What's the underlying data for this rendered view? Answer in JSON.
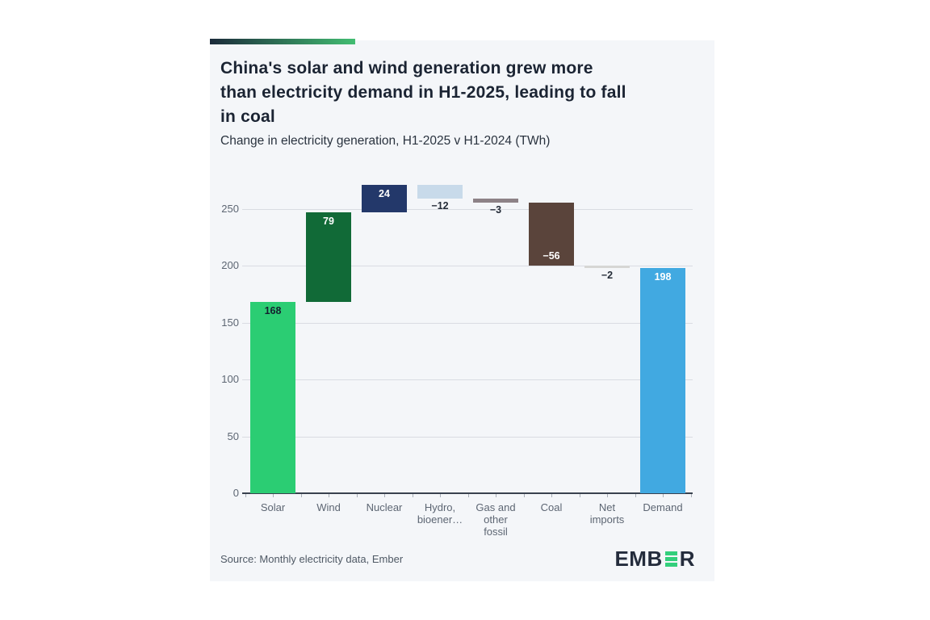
{
  "header": {
    "title_lines": [
      "China's solar and wind generation grew more",
      "than electricity demand in H1-2025, leading to fall",
      "in coal"
    ],
    "subtitle": "Change in electricity generation, H1-2025 v H1-2024 (TWh)"
  },
  "chart_data": {
    "type": "bar",
    "subtype": "waterfall",
    "title": "China's solar and wind generation grew more than electricity demand in H1-2025, leading to fall in coal",
    "subtitle": "Change in electricity generation, H1-2025 v H1-2024 (TWh)",
    "unit": "TWh",
    "ylim": [
      0,
      275
    ],
    "y_ticks": [
      0,
      50,
      100,
      150,
      200,
      250
    ],
    "grid": true,
    "legend": "none",
    "categories": [
      "Solar",
      "Wind",
      "Nuclear",
      "Hydro, bioener…",
      "Gas and other fossil",
      "Coal",
      "Net imports",
      "Demand"
    ],
    "values": [
      168,
      79,
      24,
      -12,
      -3,
      -56,
      -2,
      198
    ],
    "bars": [
      {
        "category_lines": [
          "Solar"
        ],
        "value": 168,
        "display": "168",
        "color": "#2bcd73",
        "label_pos": "inside-top",
        "label_color": "#14202f"
      },
      {
        "category_lines": [
          "Wind"
        ],
        "value": 79,
        "display": "79",
        "color": "#116a37",
        "label_pos": "inside-top",
        "label_color": "#ffffff"
      },
      {
        "category_lines": [
          "Nuclear"
        ],
        "value": 24,
        "display": "24",
        "color": "#23386a",
        "label_pos": "inside-top",
        "label_color": "#ffffff"
      },
      {
        "category_lines": [
          "Hydro,",
          "bioener…"
        ],
        "value": -12,
        "display": "−12",
        "color": "#c8daea",
        "label_pos": "below",
        "label_color": "#232b37"
      },
      {
        "category_lines": [
          "Gas and",
          "other",
          "fossil"
        ],
        "value": -3,
        "display": "−3",
        "color": "#8d8287",
        "label_pos": "below",
        "label_color": "#232b37"
      },
      {
        "category_lines": [
          "Coal"
        ],
        "value": -56,
        "display": "−56",
        "color": "#5a443b",
        "label_pos": "inside-bottom",
        "label_color": "#ffffff"
      },
      {
        "category_lines": [
          "Net",
          "imports"
        ],
        "value": -2,
        "display": "−2",
        "color": "#d6d6d4",
        "label_pos": "below",
        "label_color": "#232b37"
      },
      {
        "category_lines": [
          "Demand"
        ],
        "value": 198,
        "display": "198",
        "color": "#41a9e1",
        "is_total": true,
        "label_pos": "inside-top",
        "label_color": "#ffffff"
      }
    ]
  },
  "footer": {
    "source": "Source: Monthly electricity data, Ember",
    "logo_prefix": "EMB",
    "logo_suffix": "R"
  },
  "colors": {
    "accent_gradient_from": "#1b2a3a",
    "accent_gradient_to": "#42bd72",
    "card_background": "#f4f6f9",
    "grid_line": "#d9dce2",
    "axis_line": "#39414e",
    "axis_text": "#5d6673",
    "logo_dark": "#242c3c",
    "logo_green": "#33cf7c"
  }
}
